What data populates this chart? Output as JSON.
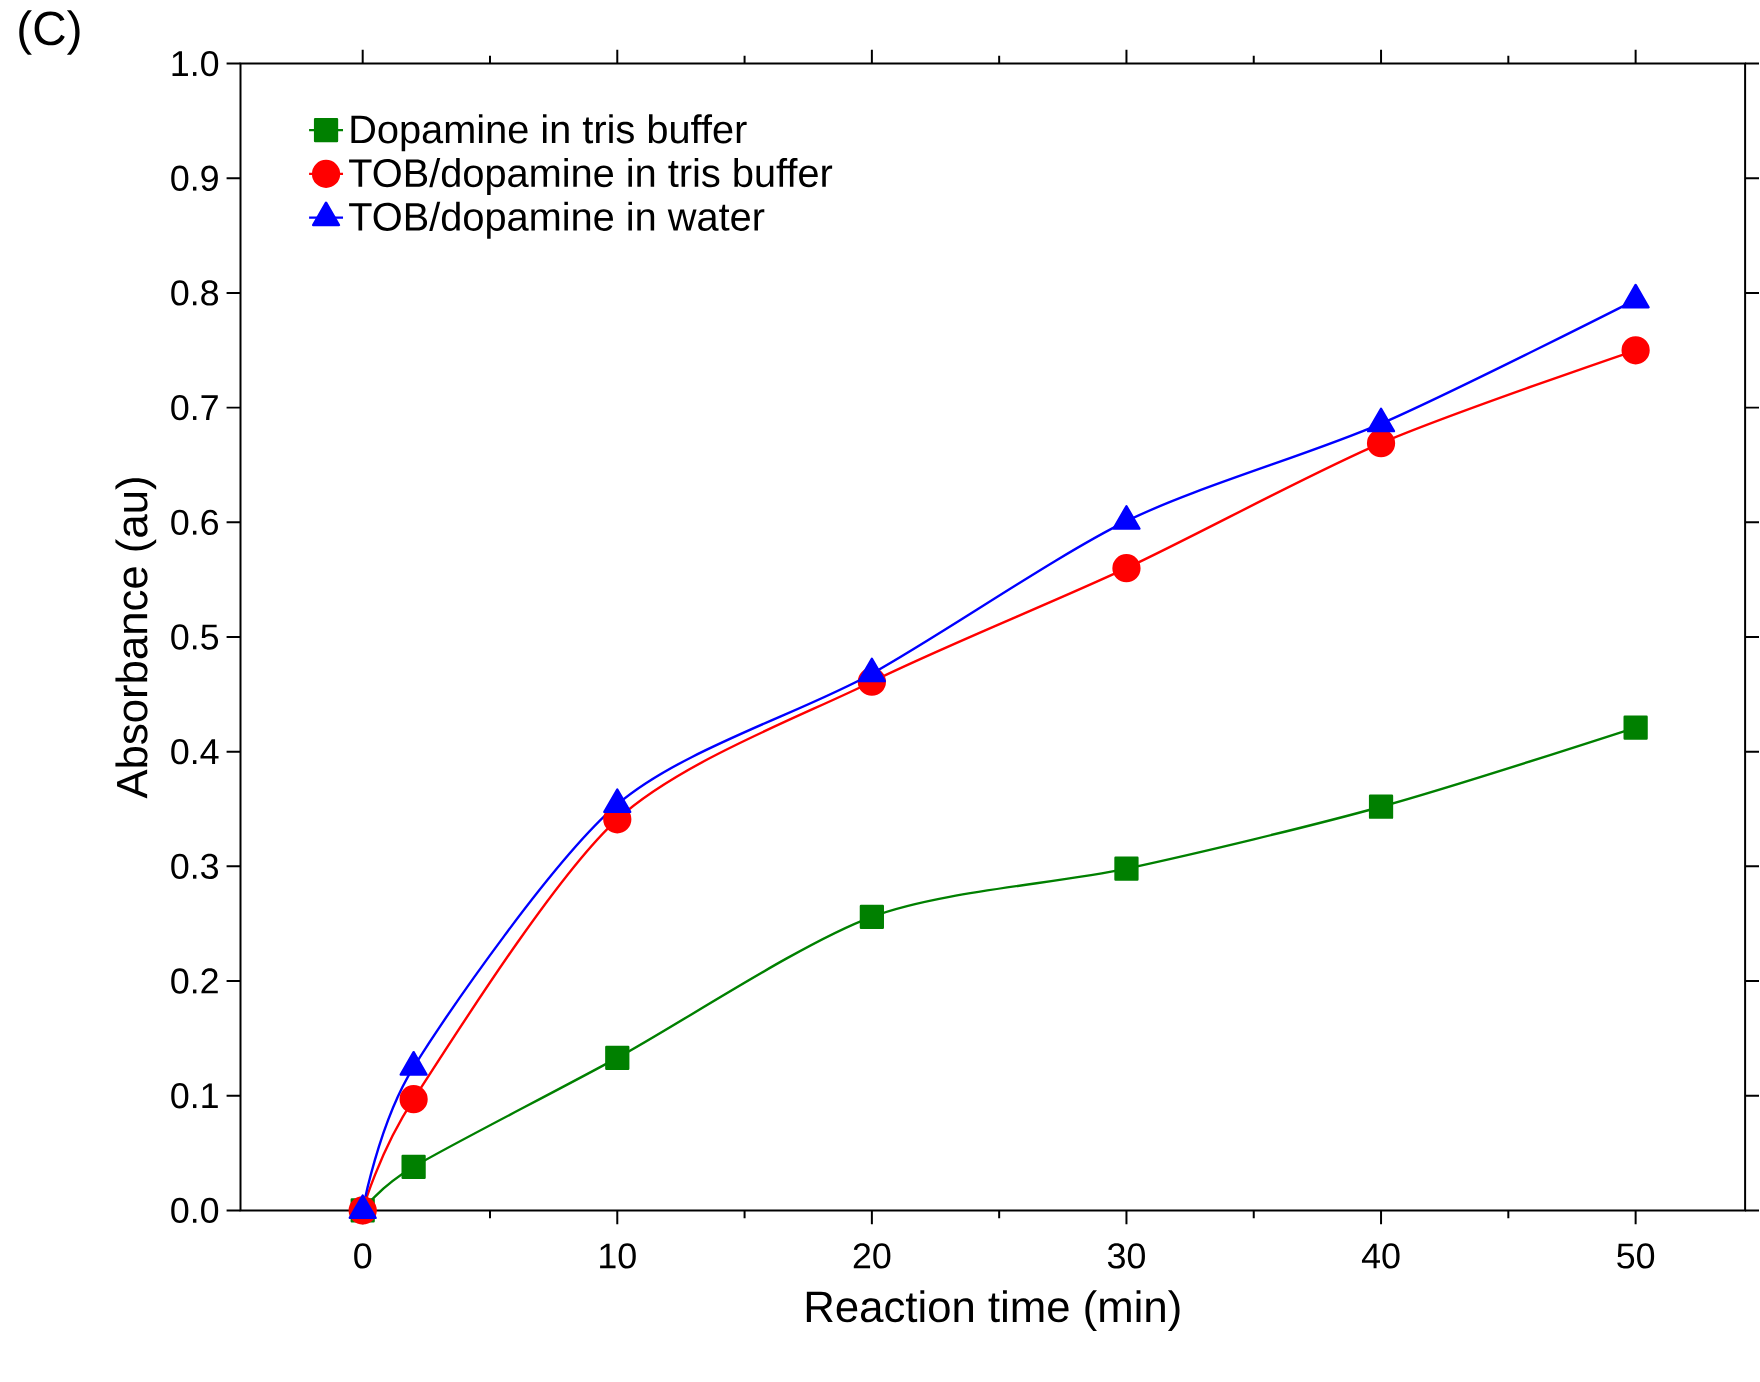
{
  "chart_data": {
    "type": "line",
    "title": "(C)",
    "xlabel": "Reaction time (min)",
    "ylabel": "Absorbance (au)",
    "x": [
      0,
      2,
      10,
      20,
      30,
      40,
      50
    ],
    "series": [
      {
        "name": "Dopamine in tris buffer",
        "color": "#008000",
        "marker": "square",
        "values": [
          0,
          0.038,
          0.133,
          0.256,
          0.298,
          0.352,
          0.421
        ]
      },
      {
        "name": "TOB/dopamine in tris buffer",
        "color": "#ff0000",
        "marker": "circle",
        "values": [
          0,
          0.097,
          0.341,
          0.461,
          0.56,
          0.669,
          0.75
        ]
      },
      {
        "name": "TOB/dopamine in water",
        "color": "#0000ff",
        "marker": "triangle",
        "values": [
          0,
          0.125,
          0.354,
          0.468,
          0.601,
          0.686,
          0.794
        ]
      }
    ],
    "xlim": [
      -4.8,
      54.3
    ],
    "ylim": [
      0,
      1
    ],
    "xticks": [
      0,
      10,
      20,
      30,
      40,
      50
    ],
    "yticks": [
      {
        "value": 0,
        "label": "0.0"
      },
      0.1,
      0.2,
      0.3,
      0.4,
      0.5,
      0.6,
      0.7,
      0.8,
      0.9,
      {
        "value": 1,
        "label": "1.0"
      }
    ],
    "grid": false,
    "legend": "top left",
    "line_style": "solid"
  }
}
